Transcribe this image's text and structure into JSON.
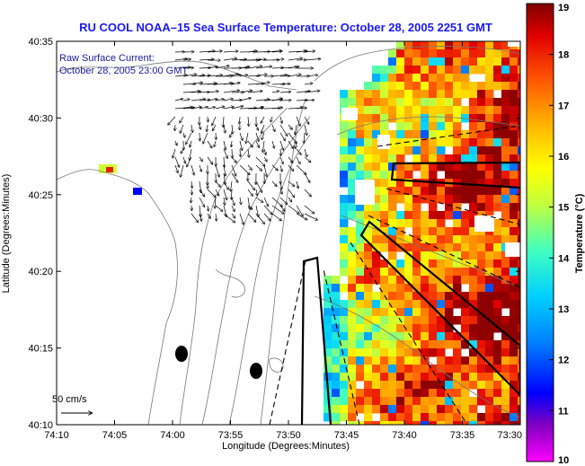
{
  "title": "RU COOL  NOAA–15  Sea Surface Temperature:  October 28, 2005 2251 GMT",
  "current_label": {
    "line1": "Raw Surface Current:",
    "line2": "October 28, 2005 23:00 GMT"
  },
  "scale_label": "50 cm/s",
  "x_axis": {
    "label": "Longitude (Degrees:Minutes)",
    "ticks": [
      "74:10",
      "74:05",
      "74:00",
      "73:55",
      "73:50",
      "73:45",
      "73:40",
      "73:35",
      "73:30"
    ]
  },
  "y_axis": {
    "label": "Latitude (Degrees:Minutes)",
    "ticks": [
      "40:35",
      "40:30",
      "40:25",
      "40:20",
      "40:15",
      "40:10"
    ]
  },
  "colorbar": {
    "label": "Temperature (°C)",
    "ticks": [
      "19",
      "18",
      "17",
      "16",
      "15",
      "14",
      "13",
      "12",
      "11",
      "10"
    ],
    "min": 10,
    "max": 19
  },
  "colors": {
    "title": "#1a1aff",
    "annotation": "#1a1a9a",
    "land": "#ffffff",
    "contour": "#777777"
  }
}
